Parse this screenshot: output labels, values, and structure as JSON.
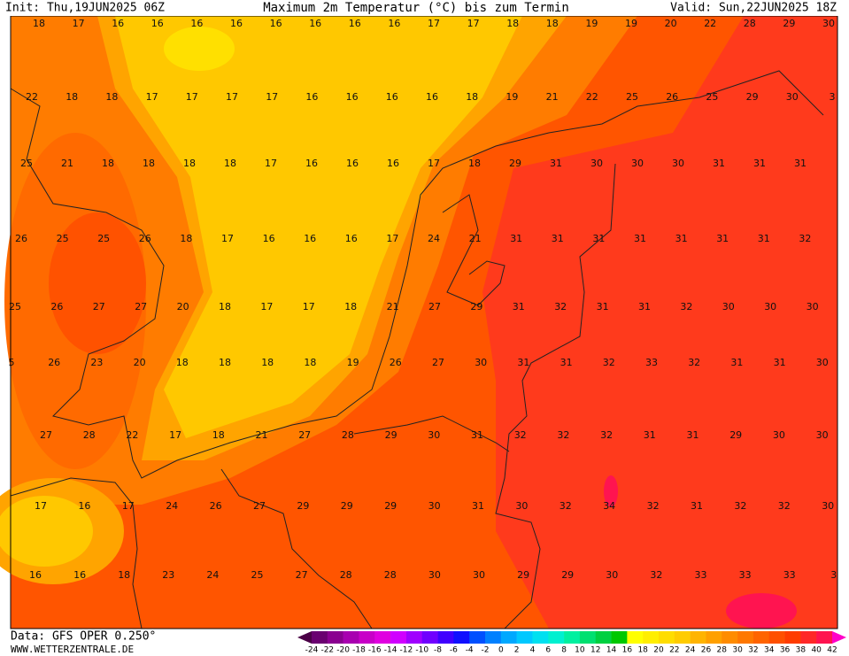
{
  "header": {
    "init": "Init: Thu,19JUN2025 06Z",
    "title": "Maximum 2m Temperatur (°C) bis zum Termin",
    "valid": "Valid: Sun,22JUN2025 18Z"
  },
  "map": {
    "rows": [
      [
        18,
        17,
        16,
        16,
        16,
        16,
        16,
        16,
        16,
        16,
        17,
        17,
        18,
        18,
        19,
        19,
        20,
        22,
        28,
        29,
        30
      ],
      [
        22,
        18,
        18,
        17,
        17,
        17,
        17,
        16,
        16,
        16,
        16,
        18,
        19,
        21,
        22,
        25,
        26,
        25,
        29,
        30,
        3
      ],
      [
        25,
        21,
        18,
        18,
        18,
        18,
        17,
        16,
        16,
        16,
        17,
        18,
        29,
        31,
        30,
        30,
        30,
        31,
        31,
        31
      ],
      [
        26,
        25,
        25,
        26,
        18,
        17,
        16,
        16,
        16,
        17,
        24,
        21,
        31,
        31,
        31,
        31,
        31,
        31,
        31,
        32
      ],
      [
        25,
        26,
        27,
        27,
        20,
        18,
        17,
        17,
        18,
        21,
        27,
        29,
        31,
        32,
        31,
        31,
        32,
        30,
        30,
        30
      ],
      [
        5,
        26,
        23,
        20,
        18,
        18,
        18,
        18,
        19,
        26,
        27,
        30,
        31,
        31,
        32,
        33,
        32,
        31,
        31,
        30
      ],
      [
        27,
        28,
        22,
        17,
        18,
        21,
        27,
        28,
        29,
        30,
        31,
        32,
        32,
        32,
        31,
        31,
        29,
        30,
        30
      ],
      [
        17,
        16,
        17,
        24,
        26,
        27,
        29,
        29,
        29,
        30,
        31,
        30,
        32,
        34,
        32,
        31,
        32,
        32,
        30
      ],
      [
        16,
        16,
        18,
        23,
        24,
        25,
        27,
        28,
        28,
        30,
        30,
        29,
        29,
        30,
        32,
        33,
        33,
        33,
        3
      ]
    ]
  },
  "legend": {
    "ticks": [
      -24,
      -22,
      -20,
      -18,
      -16,
      -14,
      -12,
      -10,
      -8,
      -6,
      -4,
      -2,
      0,
      2,
      4,
      6,
      8,
      10,
      12,
      14,
      16,
      18,
      20,
      22,
      24,
      26,
      28,
      30,
      32,
      34,
      36,
      38,
      40,
      42
    ],
    "colors": [
      "#4a0046",
      "#6a0070",
      "#8a0090",
      "#a800b0",
      "#c800c8",
      "#e000e0",
      "#d000ff",
      "#a000ff",
      "#7000ff",
      "#4000ff",
      "#1010ff",
      "#0050ff",
      "#0080ff",
      "#00a8ff",
      "#00c8ff",
      "#00e0f0",
      "#00f0d0",
      "#00f0a0",
      "#00e070",
      "#00d040",
      "#00c800",
      "#ffff00",
      "#ffee00",
      "#ffdd00",
      "#ffcc00",
      "#ffb400",
      "#ffa000",
      "#ff8c00",
      "#ff7800",
      "#ff6400",
      "#ff5000",
      "#ff3c00",
      "#ff2828",
      "#ff1450",
      "#ff00c8"
    ]
  },
  "footer": {
    "source": "Data: GFS OPER 0.250°",
    "site": "WWW.WETTERZENTRALE.DE"
  }
}
